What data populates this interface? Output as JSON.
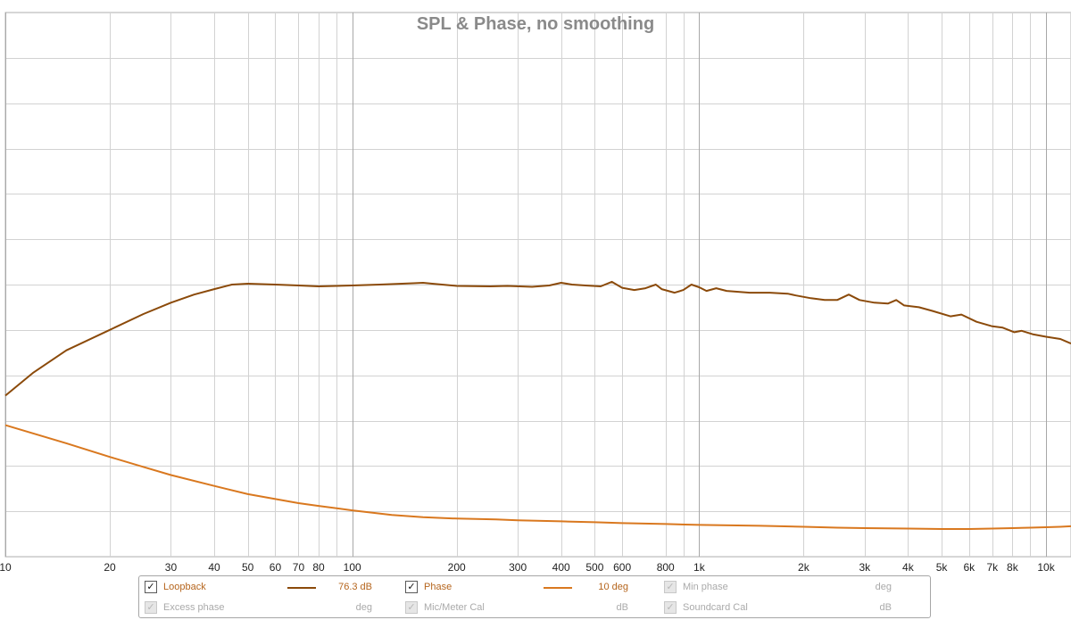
{
  "chart_data": {
    "type": "line",
    "title": "SPL & Phase, no smoothing",
    "x_scale": "log",
    "xlim": [
      10,
      11800
    ],
    "x_ticks": [
      {
        "value": 10,
        "label": "10"
      },
      {
        "value": 20,
        "label": "20"
      },
      {
        "value": 30,
        "label": "30"
      },
      {
        "value": 40,
        "label": "40"
      },
      {
        "value": 50,
        "label": "50"
      },
      {
        "value": 60,
        "label": "60"
      },
      {
        "value": 70,
        "label": "70"
      },
      {
        "value": 80,
        "label": "80"
      },
      {
        "value": 100,
        "label": "100"
      },
      {
        "value": 200,
        "label": "200"
      },
      {
        "value": 300,
        "label": "300"
      },
      {
        "value": 400,
        "label": "400"
      },
      {
        "value": 500,
        "label": "500"
      },
      {
        "value": 600,
        "label": "600"
      },
      {
        "value": 800,
        "label": "800"
      },
      {
        "value": 1000,
        "label": "1k"
      },
      {
        "value": 2000,
        "label": "2k"
      },
      {
        "value": 3000,
        "label": "3k"
      },
      {
        "value": 4000,
        "label": "4k"
      },
      {
        "value": 5000,
        "label": "5k"
      },
      {
        "value": 6000,
        "label": "6k"
      },
      {
        "value": 7000,
        "label": "7k"
      },
      {
        "value": 8000,
        "label": "8k"
      },
      {
        "value": 10000,
        "label": "10k"
      }
    ],
    "x_minor_gridlines": [
      9000,
      90,
      900
    ],
    "y_gridlines": 12,
    "grid": true,
    "series": [
      {
        "name": "Loopback",
        "color": "#8b4a0a",
        "points": [
          [
            10,
            3.55
          ],
          [
            12,
            4.05
          ],
          [
            15,
            4.55
          ],
          [
            20,
            5.0
          ],
          [
            25,
            5.35
          ],
          [
            30,
            5.6
          ],
          [
            35,
            5.78
          ],
          [
            40,
            5.9
          ],
          [
            45,
            6.0
          ],
          [
            50,
            6.02
          ],
          [
            60,
            6.0
          ],
          [
            70,
            5.98
          ],
          [
            80,
            5.96
          ],
          [
            90,
            5.97
          ],
          [
            100,
            5.98
          ],
          [
            120,
            6.0
          ],
          [
            150,
            6.03
          ],
          [
            160,
            6.04
          ],
          [
            170,
            6.02
          ],
          [
            200,
            5.97
          ],
          [
            250,
            5.96
          ],
          [
            280,
            5.97
          ],
          [
            330,
            5.95
          ],
          [
            370,
            5.98
          ],
          [
            400,
            6.04
          ],
          [
            430,
            6.0
          ],
          [
            470,
            5.98
          ],
          [
            520,
            5.96
          ],
          [
            560,
            6.06
          ],
          [
            600,
            5.93
          ],
          [
            650,
            5.88
          ],
          [
            700,
            5.92
          ],
          [
            750,
            6.0
          ],
          [
            780,
            5.9
          ],
          [
            850,
            5.82
          ],
          [
            900,
            5.88
          ],
          [
            950,
            6.0
          ],
          [
            1000,
            5.94
          ],
          [
            1050,
            5.86
          ],
          [
            1120,
            5.92
          ],
          [
            1200,
            5.86
          ],
          [
            1400,
            5.82
          ],
          [
            1600,
            5.82
          ],
          [
            1800,
            5.8
          ],
          [
            1900,
            5.76
          ],
          [
            2100,
            5.7
          ],
          [
            2300,
            5.66
          ],
          [
            2500,
            5.66
          ],
          [
            2700,
            5.78
          ],
          [
            2900,
            5.66
          ],
          [
            3200,
            5.6
          ],
          [
            3500,
            5.58
          ],
          [
            3700,
            5.66
          ],
          [
            3900,
            5.54
          ],
          [
            4300,
            5.5
          ],
          [
            4700,
            5.42
          ],
          [
            5300,
            5.3
          ],
          [
            5700,
            5.34
          ],
          [
            6300,
            5.18
          ],
          [
            7000,
            5.08
          ],
          [
            7500,
            5.05
          ],
          [
            8100,
            4.95
          ],
          [
            8500,
            4.98
          ],
          [
            9200,
            4.9
          ],
          [
            10000,
            4.85
          ],
          [
            11000,
            4.8
          ],
          [
            11800,
            4.7
          ]
        ]
      },
      {
        "name": "Phase",
        "color": "#d9781f",
        "points": [
          [
            10,
            2.9
          ],
          [
            15,
            2.5
          ],
          [
            20,
            2.2
          ],
          [
            25,
            1.98
          ],
          [
            30,
            1.8
          ],
          [
            40,
            1.56
          ],
          [
            50,
            1.38
          ],
          [
            60,
            1.27
          ],
          [
            70,
            1.18
          ],
          [
            80,
            1.12
          ],
          [
            100,
            1.02
          ],
          [
            130,
            0.92
          ],
          [
            160,
            0.87
          ],
          [
            200,
            0.84
          ],
          [
            260,
            0.82
          ],
          [
            300,
            0.8
          ],
          [
            400,
            0.78
          ],
          [
            500,
            0.76
          ],
          [
            600,
            0.74
          ],
          [
            800,
            0.72
          ],
          [
            1000,
            0.7
          ],
          [
            1500,
            0.68
          ],
          [
            2000,
            0.66
          ],
          [
            2500,
            0.64
          ],
          [
            3000,
            0.63
          ],
          [
            4000,
            0.62
          ],
          [
            5000,
            0.61
          ],
          [
            6000,
            0.61
          ],
          [
            7000,
            0.62
          ],
          [
            8000,
            0.63
          ],
          [
            9000,
            0.64
          ],
          [
            10000,
            0.65
          ],
          [
            11000,
            0.66
          ],
          [
            11800,
            0.67
          ]
        ]
      }
    ]
  },
  "legend": {
    "items": [
      {
        "label": "Loopback",
        "value": "76.3 dB",
        "checked": true,
        "enabled": true,
        "color": "#8b4a0a"
      },
      {
        "label": "Phase",
        "value": "10 deg",
        "checked": true,
        "enabled": true,
        "color": "#d9781f"
      },
      {
        "label": "Min phase",
        "value": "deg",
        "checked": true,
        "enabled": false
      },
      {
        "label": "Excess phase",
        "value": "deg",
        "checked": true,
        "enabled": false
      },
      {
        "label": "Mic/Meter Cal",
        "value": "dB",
        "checked": true,
        "enabled": false
      },
      {
        "label": "Soundcard Cal",
        "value": "dB",
        "checked": true,
        "enabled": false
      }
    ]
  }
}
